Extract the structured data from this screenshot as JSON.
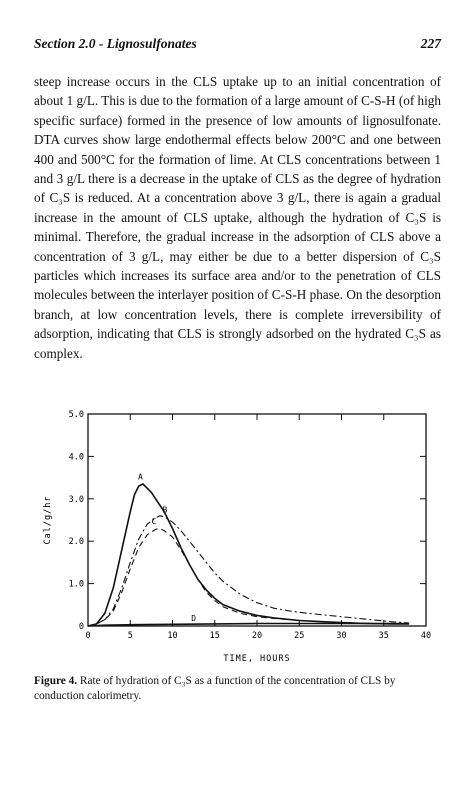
{
  "header": {
    "section": "Section 2.0 - Lignosulfonates",
    "page_number": "227"
  },
  "paragraph": "steep increase occurs in the CLS uptake up to an initial concentration of about 1 g/L. This is due to the formation of a large amount of C-S-H (of high specific surface) formed in the presence of low amounts of lignosulfonate. DTA curves show large endothermal effects below 200°C and one between 400 and 500°C for the formation of lime. At CLS concentrations between 1 and 3 g/L there is a decrease in the uptake of CLS as the degree of hydration of C₃S is reduced. At a concentration above 3 g/L, there is again a gradual increase in the amount of CLS uptake, although the hydration of C₃S is minimal. Therefore, the gradual increase in the adsorption of CLS above a concentration of 3 g/L, may either be due to a better dispersion of C₃S particles which increases its surface area and/or to the penetration of CLS molecules between the interlayer position of C-S-H phase. On the desorption branch, at low concentration levels, there is complete irreversibility of adsorption, indicating that CLS is strongly adsorbed on the hydrated C₃S as complex.",
  "caption": {
    "label": "Figure 4.",
    "text": "Rate of hydration of C₃S as a function of the concentration of CLS by conduction calorimetry."
  },
  "chart_data": {
    "type": "line",
    "xlabel": "TIME, HOURS",
    "ylabel": "Cal/g/hr",
    "xlim": [
      0,
      40
    ],
    "ylim": [
      0,
      5
    ],
    "x_ticks": [
      "0",
      "5",
      "10",
      "15",
      "20",
      "25",
      "30",
      "35",
      "40"
    ],
    "y_ticks": [
      "0",
      "1.0",
      "2.0",
      "3.0",
      "4.0",
      "5.0"
    ],
    "grid": false,
    "series": [
      {
        "name": "A",
        "style": "solid",
        "x": [
          0,
          1,
          2,
          3,
          4,
          5,
          5.5,
          6,
          6.5,
          7,
          7.5,
          8,
          9,
          10,
          11,
          12,
          13,
          14,
          15,
          16,
          18,
          20,
          22,
          25,
          28,
          30,
          33,
          36,
          38
        ],
        "y": [
          0,
          0.05,
          0.3,
          0.9,
          1.8,
          2.7,
          3.1,
          3.3,
          3.35,
          3.25,
          3.15,
          3.0,
          2.7,
          2.3,
          1.85,
          1.45,
          1.1,
          0.85,
          0.65,
          0.5,
          0.35,
          0.25,
          0.19,
          0.13,
          0.1,
          0.08,
          0.06,
          0.05,
          0.05
        ]
      },
      {
        "name": "B",
        "style": "dash-dot",
        "x": [
          0,
          1,
          2,
          3,
          4,
          5,
          6,
          7,
          8,
          8.5,
          9,
          10,
          11,
          12,
          13,
          14,
          15,
          16,
          18,
          20,
          22,
          24,
          26,
          28,
          30,
          32,
          34,
          36,
          38
        ],
        "y": [
          0,
          0.05,
          0.15,
          0.4,
          0.9,
          1.5,
          2.05,
          2.4,
          2.55,
          2.6,
          2.58,
          2.45,
          2.25,
          2.0,
          1.75,
          1.5,
          1.25,
          1.05,
          0.75,
          0.55,
          0.42,
          0.35,
          0.3,
          0.26,
          0.22,
          0.18,
          0.14,
          0.1,
          0.07
        ]
      },
      {
        "name": "C",
        "style": "dashed",
        "x": [
          0,
          1,
          2,
          3,
          4,
          5,
          6,
          7,
          8,
          8.5,
          9,
          10,
          11,
          12,
          13,
          14,
          15,
          16,
          18,
          20,
          22,
          25,
          28,
          30,
          33,
          36,
          38
        ],
        "y": [
          0,
          0.05,
          0.15,
          0.35,
          0.8,
          1.35,
          1.85,
          2.15,
          2.28,
          2.3,
          2.25,
          2.1,
          1.8,
          1.45,
          1.1,
          0.8,
          0.6,
          0.45,
          0.3,
          0.22,
          0.18,
          0.13,
          0.1,
          0.08,
          0.06,
          0.05,
          0.05
        ]
      },
      {
        "name": "D",
        "style": "solid",
        "x": [
          0,
          2,
          5,
          10,
          15,
          20,
          25,
          30,
          35,
          38
        ],
        "y": [
          0,
          0.02,
          0.03,
          0.04,
          0.05,
          0.06,
          0.06,
          0.06,
          0.06,
          0.06
        ]
      }
    ],
    "annotations": [
      {
        "text": "A",
        "x": 6.2,
        "y": 3.45
      },
      {
        "text": "B",
        "x": 9.1,
        "y": 2.68
      },
      {
        "text": "C",
        "x": 7.8,
        "y": 2.4
      },
      {
        "text": "D",
        "x": 12.5,
        "y": 0.12
      }
    ]
  }
}
